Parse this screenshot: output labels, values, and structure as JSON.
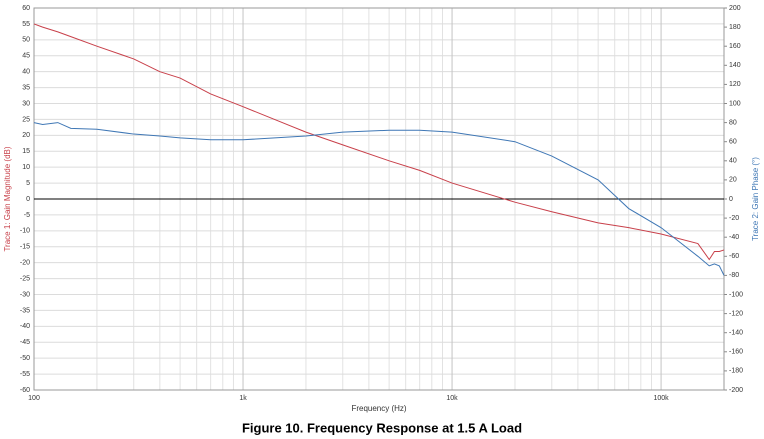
{
  "chart_data": {
    "type": "line",
    "title": "Figure 10. Frequency Response at 1.5 A Load",
    "x_label": "Frequency (Hz)",
    "xlog": true,
    "grid": true,
    "zero_line": true,
    "xlim": [
      100,
      200000
    ],
    "xticks": [
      100,
      {
        "value": 1000,
        "label": "1k"
      },
      {
        "value": 10000,
        "label": "10k"
      },
      {
        "value": 100000,
        "label": "100k"
      }
    ],
    "ylim": [
      -60,
      60
    ],
    "yticks": [
      -60,
      -55,
      -50,
      -45,
      -40,
      -35,
      -30,
      -25,
      -20,
      -15,
      -10,
      -5,
      0,
      5,
      10,
      15,
      20,
      25,
      30,
      35,
      40,
      45,
      50,
      55,
      60
    ],
    "y2lim": [
      -200,
      200
    ],
    "y2ticks": [
      -200,
      -180,
      -160,
      -140,
      -120,
      -100,
      -80,
      -60,
      -40,
      -20,
      0,
      20,
      40,
      60,
      80,
      100,
      120,
      140,
      160,
      180,
      200
    ],
    "x": [
      100,
      110,
      130,
      150,
      200,
      300,
      400,
      500,
      700,
      1000,
      2000,
      3000,
      5000,
      7000,
      10000,
      20000,
      30000,
      50000,
      70000,
      100000,
      150000,
      170000,
      180000,
      190000,
      200000
    ],
    "series": [
      {
        "name": "Trace 1: Gain Magnitude (dB)",
        "color": "#c8404a",
        "axis": "y",
        "values": [
          55,
          54,
          52.5,
          51,
          48,
          44,
          40,
          38,
          33,
          29,
          21,
          17,
          12,
          9,
          5,
          -1,
          -4,
          -7.5,
          -9,
          -11,
          -14,
          -19,
          -16.5,
          -16.5,
          -16
        ]
      },
      {
        "name": "Trace 2: Gain Phase (°)",
        "color": "#3f77b5",
        "axis": "y2",
        "values": [
          80,
          78,
          80,
          74,
          73,
          68,
          66,
          64,
          62,
          62,
          66,
          70,
          72,
          72,
          70,
          60,
          45,
          20,
          -10,
          -30,
          -60,
          -70,
          -68,
          -70,
          -80
        ]
      }
    ]
  }
}
